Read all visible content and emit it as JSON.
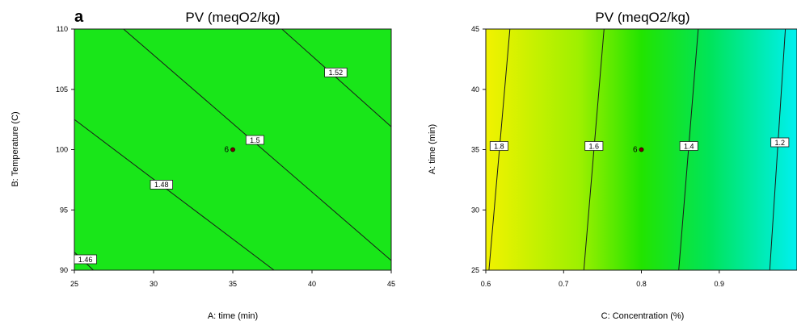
{
  "colors": {
    "panel_a_fill": "#19e619",
    "gradient_yellow": "#f2f200",
    "gradient_green": "#22e400",
    "gradient_cyan": "#00f0f0",
    "line": "#1a1a1a",
    "label_bg": "#ffffff",
    "center_point": "#7a0000"
  },
  "chart_data": [
    {
      "type": "contour",
      "panel_letter": "a",
      "title": "PV (meqO2/kg)",
      "xlabel": "A: time (min)",
      "ylabel": "B: Temperature (C)",
      "xlim": [
        25,
        45
      ],
      "ylim": [
        90,
        110
      ],
      "xticks": [
        "25",
        "30",
        "35",
        "40",
        "45"
      ],
      "yticks": [
        "90",
        "95",
        "100",
        "105",
        "110"
      ],
      "contours": [
        {
          "level": "1.46",
          "points": [
            [
              25,
              91.5
            ],
            [
              26.2,
              90
            ]
          ],
          "label_at": [
            25.7,
            90.9
          ]
        },
        {
          "level": "1.48",
          "points": [
            [
              25,
              102.5
            ],
            [
              37.6,
              90
            ]
          ],
          "label_at": [
            30.5,
            97.1
          ]
        },
        {
          "level": "1.5",
          "points": [
            [
              28.1,
              110
            ],
            [
              45,
              90.8
            ]
          ],
          "label_at": [
            36.4,
            100.8
          ]
        },
        {
          "level": "1.52",
          "points": [
            [
              38.1,
              110
            ],
            [
              45,
              101.9
            ]
          ],
          "label_at": [
            41.5,
            106.4
          ]
        }
      ],
      "center_points": [
        {
          "x": 35,
          "y": 100,
          "label": "6"
        }
      ]
    },
    {
      "type": "contour",
      "panel_letter": "",
      "title": "PV (meqO2/kg)",
      "xlabel": "C: Concentration (%)",
      "ylabel": "A: time (min)",
      "xlim": [
        0.6,
        1.0
      ],
      "ylim": [
        25,
        45
      ],
      "xticks": [
        "0.6",
        "0.7",
        "0.8",
        "0.9"
      ],
      "yticks": [
        "25",
        "30",
        "35",
        "40",
        "45"
      ],
      "contours": [
        {
          "level": "1.8",
          "points": [
            [
              0.604,
              25
            ],
            [
              0.631,
              45
            ]
          ],
          "label_at": [
            0.617,
            35.3
          ]
        },
        {
          "level": "1.6",
          "points": [
            [
              0.726,
              25
            ],
            [
              0.752,
              45
            ]
          ],
          "label_at": [
            0.739,
            35.3
          ]
        },
        {
          "level": "1.4",
          "points": [
            [
              0.848,
              25
            ],
            [
              0.873,
              45
            ]
          ],
          "label_at": [
            0.861,
            35.3
          ]
        },
        {
          "level": "1.2",
          "points": [
            [
              0.965,
              25
            ],
            [
              0.985,
              45
            ]
          ],
          "label_at": [
            0.978,
            35.6
          ]
        }
      ],
      "center_points": [
        {
          "x": 0.8,
          "y": 35,
          "label": "6"
        }
      ]
    }
  ]
}
